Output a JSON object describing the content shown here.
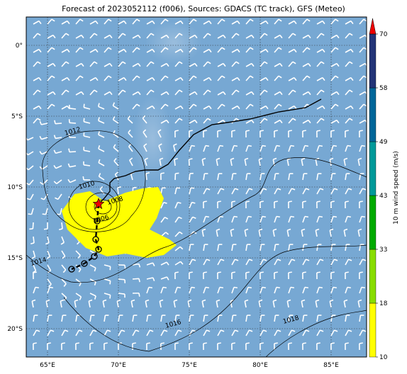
{
  "title": "Forecast of 2023052112 (f006), Sources: GDACS (TC track), GFS (Meteo)",
  "map": {
    "lon_range": [
      63.5,
      87.5
    ],
    "lat_range": [
      -22.0,
      2.0
    ],
    "lon_ticks": [
      {
        "value": 65,
        "label": "65°E"
      },
      {
        "value": 70,
        "label": "70°E"
      },
      {
        "value": 75,
        "label": "75°E"
      },
      {
        "value": 80,
        "label": "80°E"
      },
      {
        "value": 85,
        "label": "85°E"
      }
    ],
    "lat_ticks": [
      {
        "value": 0,
        "label": "0°"
      },
      {
        "value": -5,
        "label": "5°S"
      },
      {
        "value": -10,
        "label": "10°S"
      },
      {
        "value": -15,
        "label": "15°S"
      },
      {
        "value": -20,
        "label": "20°S"
      }
    ],
    "gridlines": true,
    "ocean_color": "#77a8d3",
    "cyclone_position": {
      "lon": 68.6,
      "lat": -11.2
    },
    "forecast_track": [
      {
        "lon": 68.6,
        "lat": -11.2
      },
      {
        "lon": 68.5,
        "lat": -12.4
      },
      {
        "lon": 68.4,
        "lat": -13.7
      },
      {
        "lon": 68.6,
        "lat": -14.4
      },
      {
        "lon": 68.3,
        "lat": -14.9
      },
      {
        "lon": 67.6,
        "lat": -15.4
      },
      {
        "lon": 66.7,
        "lat": -15.8
      }
    ],
    "past_track": [
      {
        "lon": 84.3,
        "lat": -3.8
      },
      {
        "lon": 83.2,
        "lat": -4.4
      },
      {
        "lon": 81.3,
        "lat": -4.7
      },
      {
        "lon": 79.3,
        "lat": -5.2
      },
      {
        "lon": 78.0,
        "lat": -5.4
      },
      {
        "lon": 76.6,
        "lat": -5.6
      },
      {
        "lon": 75.3,
        "lat": -6.3
      },
      {
        "lon": 74.3,
        "lat": -7.4
      },
      {
        "lon": 73.5,
        "lat": -8.4
      },
      {
        "lon": 72.8,
        "lat": -8.8
      },
      {
        "lon": 71.9,
        "lat": -8.8
      },
      {
        "lon": 71.2,
        "lat": -8.9
      },
      {
        "lon": 70.5,
        "lat": -9.2
      },
      {
        "lon": 69.7,
        "lat": -9.4
      },
      {
        "lon": 69.4,
        "lat": -9.7
      },
      {
        "lon": 69.4,
        "lat": -10.3
      },
      {
        "lon": 69.0,
        "lat": -10.8
      },
      {
        "lon": 68.6,
        "lat": -11.2
      }
    ],
    "isobars": [
      {
        "label": "1006",
        "label_lon": 68.8,
        "label_lat": -12.4
      },
      {
        "label": "1008",
        "label_lon": 69.8,
        "label_lat": -11.1
      },
      {
        "label": "1010",
        "label_lon": 67.8,
        "label_lat": -10.0
      },
      {
        "label": "1012",
        "label_lon": 66.8,
        "label_lat": -6.2
      },
      {
        "label": "1014",
        "label_lon": 64.4,
        "label_lat": -15.4
      },
      {
        "label": "1016",
        "label_lon": 73.9,
        "label_lat": -19.8
      },
      {
        "label": "1018",
        "label_lon": 82.2,
        "label_lat": -19.5
      }
    ],
    "wind_swath": [
      {
        "lon": 66.9,
        "lat": -10.5
      },
      {
        "lon": 68.0,
        "lat": -10.3
      },
      {
        "lon": 69.0,
        "lat": -11.0
      },
      {
        "lon": 70.5,
        "lat": -10.4
      },
      {
        "lon": 71.7,
        "lat": -10.1
      },
      {
        "lon": 72.8,
        "lat": -10.0
      },
      {
        "lon": 73.2,
        "lat": -10.8
      },
      {
        "lon": 72.7,
        "lat": -12.2
      },
      {
        "lon": 72.2,
        "lat": -13.0
      },
      {
        "lon": 73.6,
        "lat": -13.7
      },
      {
        "lon": 74.1,
        "lat": -14.1
      },
      {
        "lon": 73.2,
        "lat": -14.8
      },
      {
        "lon": 72.0,
        "lat": -15.0
      },
      {
        "lon": 70.5,
        "lat": -14.7
      },
      {
        "lon": 69.2,
        "lat": -14.9
      },
      {
        "lon": 67.7,
        "lat": -14.3
      },
      {
        "lon": 66.4,
        "lat": -13.0
      },
      {
        "lon": 66.0,
        "lat": -11.7
      }
    ]
  },
  "colorbar": {
    "label": "10 m wind speed (m/s)",
    "ticks": [
      "10",
      "18",
      "33",
      "43",
      "49",
      "58",
      "70"
    ],
    "colors": [
      "#ffff00",
      "#88dd00",
      "#00aa00",
      "#009999",
      "#006699",
      "#223377"
    ],
    "extend_color": "#ee0000"
  }
}
